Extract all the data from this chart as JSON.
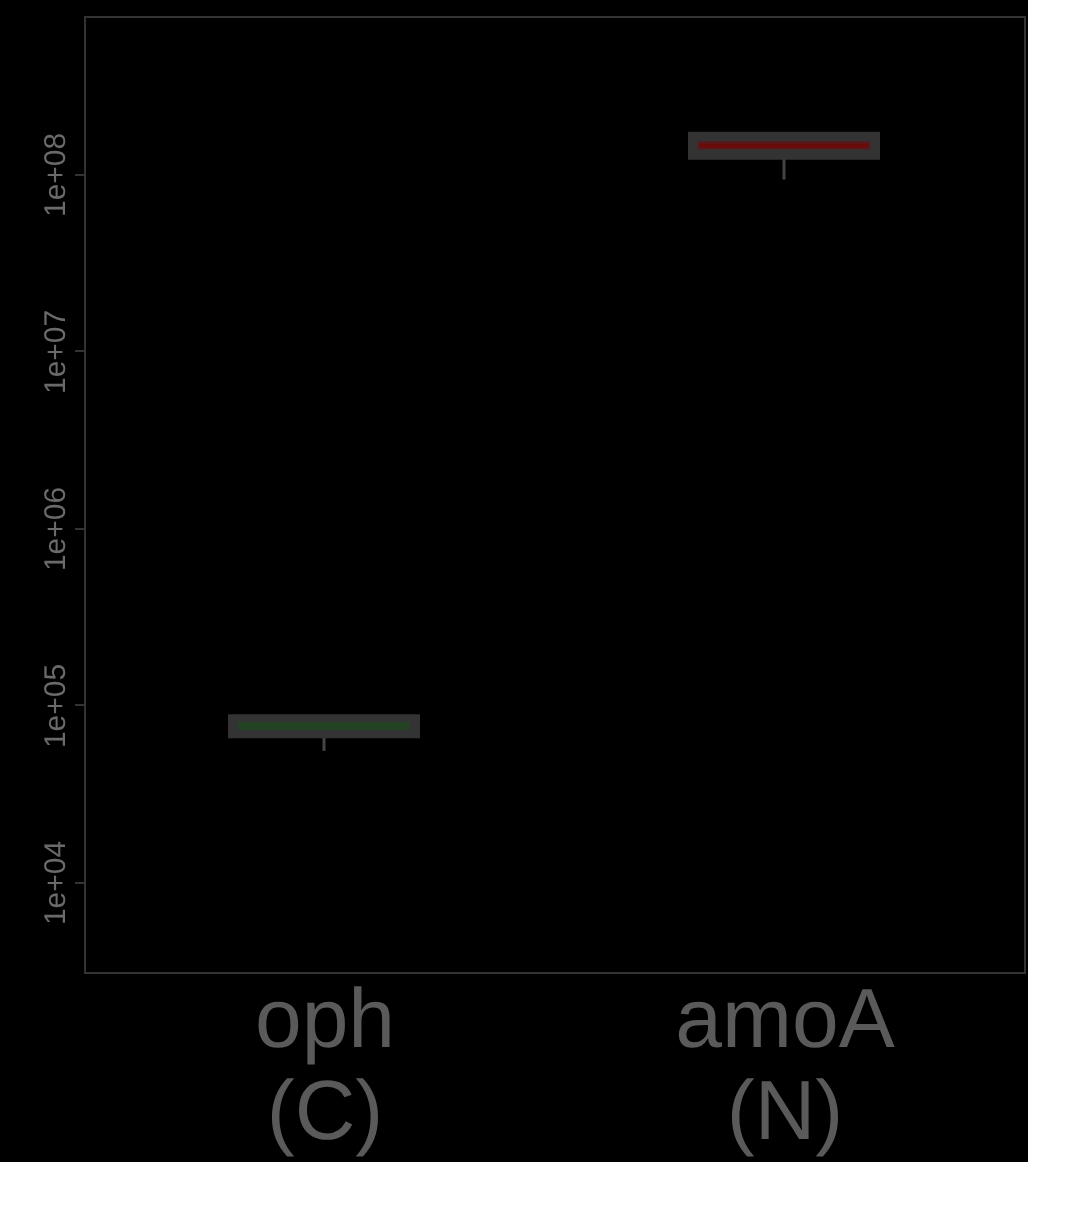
{
  "chart_data": {
    "type": "box",
    "categories": [
      "oph\n(C)",
      "amoA\n(N)"
    ],
    "series": [
      {
        "color": "#1e4a1e",
        "boxes": [
          {
            "low": 55000,
            "q1": 70000,
            "median": 76000,
            "q3": 82000,
            "high": 82000
          },
          null
        ]
      },
      {
        "color": "#6a0c0c",
        "boxes": [
          null,
          {
            "low": 93000000,
            "q1": 130000000,
            "median": 145000000,
            "q3": 160000000,
            "high": 160000000
          }
        ]
      }
    ],
    "log": true,
    "ylim": [
      3100,
      780000000
    ],
    "yticks": [
      {
        "value": 10000,
        "label": "1e+04"
      },
      {
        "value": 100000,
        "label": "1e+05"
      },
      {
        "value": 1000000,
        "label": "1e+06"
      },
      {
        "value": 10000000,
        "label": "1e+07"
      },
      {
        "value": 100000000,
        "label": "1e+08"
      }
    ],
    "grid": false,
    "legend": false
  }
}
